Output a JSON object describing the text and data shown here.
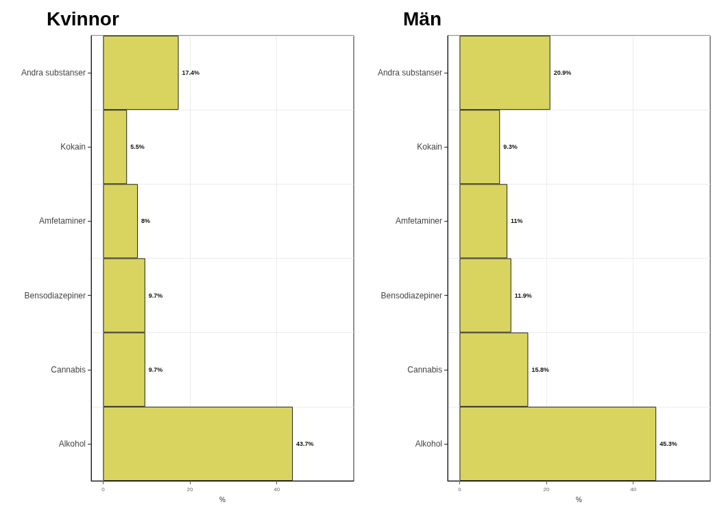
{
  "chart_data": [
    {
      "type": "bar",
      "title": "Kvinnor",
      "orientation": "horizontal",
      "xlabel": "%",
      "categories": [
        "Andra substanser",
        "Kokain",
        "Amfetaminer",
        "Bensodiazepiner",
        "Cannabis",
        "Alkohol"
      ],
      "values": [
        17.4,
        5.5,
        8,
        9.7,
        9.7,
        43.7
      ],
      "value_labels": [
        "17.4%",
        "5.5%",
        "8%",
        "9.7%",
        "9.7%",
        "43.7%"
      ],
      "color": "#d8d45f",
      "xlim": [
        -2.75,
        57.75
      ],
      "xticks": [
        0,
        20,
        40
      ],
      "grid": true
    },
    {
      "type": "bar",
      "title": "Män",
      "orientation": "horizontal",
      "xlabel": "%",
      "categories": [
        "Andra substanser",
        "Kokain",
        "Amfetaminer",
        "Bensodiazepiner",
        "Cannabis",
        "Alkohol"
      ],
      "values": [
        20.9,
        9.3,
        11,
        11.9,
        15.8,
        45.3
      ],
      "value_labels": [
        "20.9%",
        "9.3%",
        "11%",
        "11.9%",
        "15.8%",
        "45.3%"
      ],
      "color": "#d8d45f",
      "xlim": [
        -2.75,
        57.75
      ],
      "xticks": [
        0,
        20,
        40
      ],
      "grid": true
    }
  ]
}
